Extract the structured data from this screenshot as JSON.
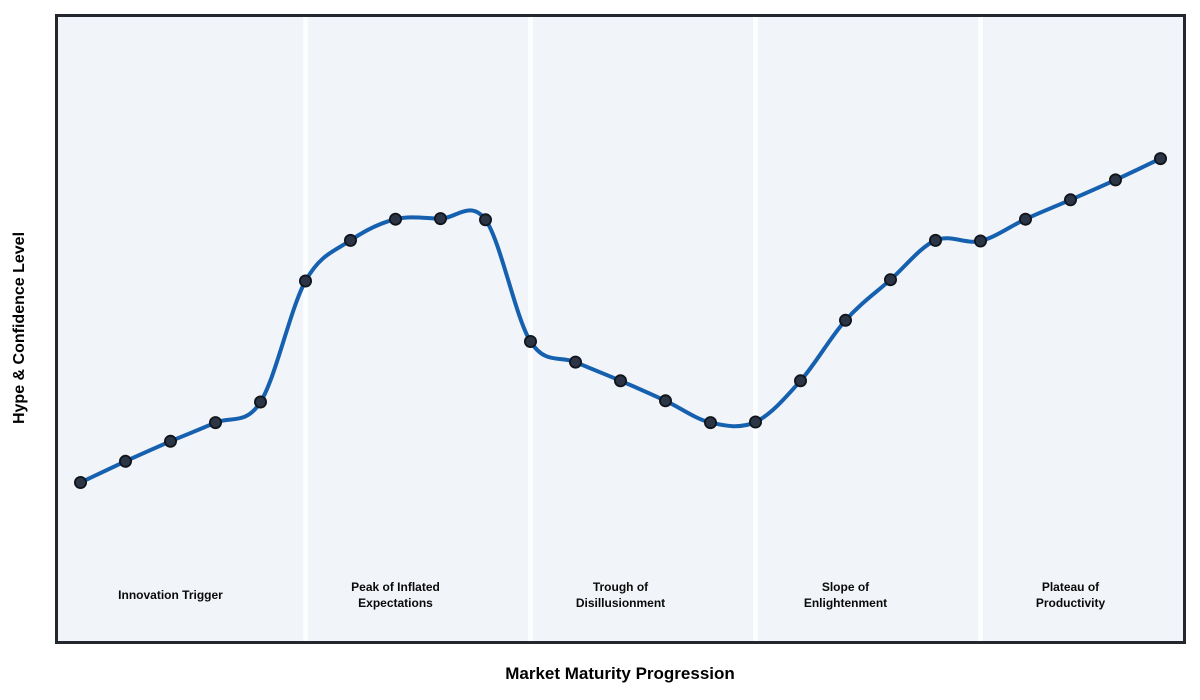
{
  "chart_data": {
    "type": "line",
    "title": "",
    "xlabel": "Market Maturity Progression",
    "ylabel": "Hype & Confidence Level",
    "x": [
      0,
      1,
      2,
      3,
      4,
      5,
      6,
      7,
      8,
      9,
      10,
      11,
      12,
      13,
      14,
      15,
      16,
      17,
      18,
      19,
      20,
      21,
      22,
      23,
      24
    ],
    "values": [
      25.4,
      28.8,
      32.0,
      35.0,
      38.3,
      57.7,
      64.2,
      67.6,
      67.7,
      67.5,
      48.0,
      44.7,
      41.7,
      38.5,
      35.0,
      35.1,
      41.7,
      51.4,
      57.9,
      64.2,
      64.1,
      67.6,
      70.7,
      73.9,
      77.3
    ],
    "xlim": [
      -0.5,
      24.5
    ],
    "ylim": [
      0,
      100
    ],
    "grid": false,
    "legend": "none",
    "axis_ticks": "none",
    "smoothing": "spline",
    "divider_x": [
      5,
      10,
      15,
      20
    ],
    "phases": [
      {
        "label": "Innovation Trigger",
        "center_x": 2
      },
      {
        "label": "Peak of Inflated\nExpectations",
        "center_x": 7
      },
      {
        "label": "Trough of\nDisillusionment",
        "center_x": 12
      },
      {
        "label": "Slope of\nEnlightenment",
        "center_x": 17
      },
      {
        "label": "Plateau of\nProductivity",
        "center_x": 22
      }
    ],
    "colors": {
      "line": "#1660b0",
      "marker_fill": "#2b3545",
      "marker_edge": "#10151c",
      "panel_bg": "#f1f4f8",
      "divider": "#fdfeff",
      "border": "#24282e",
      "text": "#000000"
    }
  }
}
